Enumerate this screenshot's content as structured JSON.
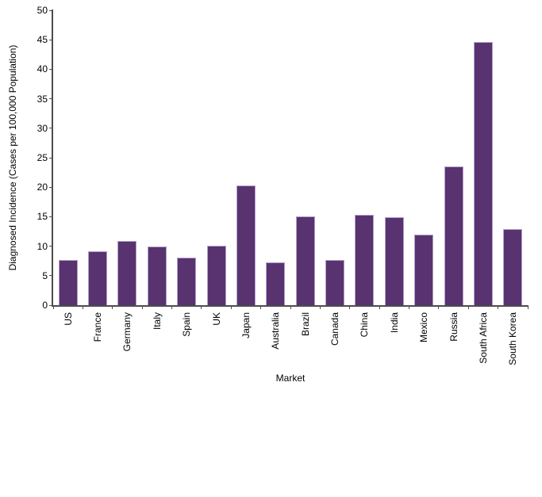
{
  "figure": {
    "background_color": "#ffffff",
    "bar_color": "#583370",
    "bar_border_color": "#b3a0c8",
    "axis_color": "#4d4d4d",
    "text_color": "#000000"
  },
  "chart_data": {
    "type": "bar",
    "title": "",
    "xlabel": "Market",
    "ylabel": "Diagnosed Incidence (Cases per 100,000 Population)",
    "categories": [
      "US",
      "France",
      "Germany",
      "Italy",
      "Spain",
      "UK",
      "Japan",
      "Australia",
      "Brazil",
      "Canada",
      "China",
      "India",
      "Mexico",
      "Russia",
      "South Africa",
      "South Korea"
    ],
    "values": [
      7.7,
      9.1,
      10.9,
      10.0,
      8.0,
      10.1,
      20.3,
      7.2,
      15.1,
      7.6,
      15.3,
      14.9,
      12.0,
      23.5,
      44.6,
      12.9
    ],
    "ylim": [
      0,
      50
    ],
    "yticks": [
      0,
      5,
      10,
      15,
      20,
      25,
      30,
      35,
      40,
      45,
      50
    ],
    "grid": false,
    "legend_position": "none",
    "x_labels_rotated_degrees": 90
  }
}
